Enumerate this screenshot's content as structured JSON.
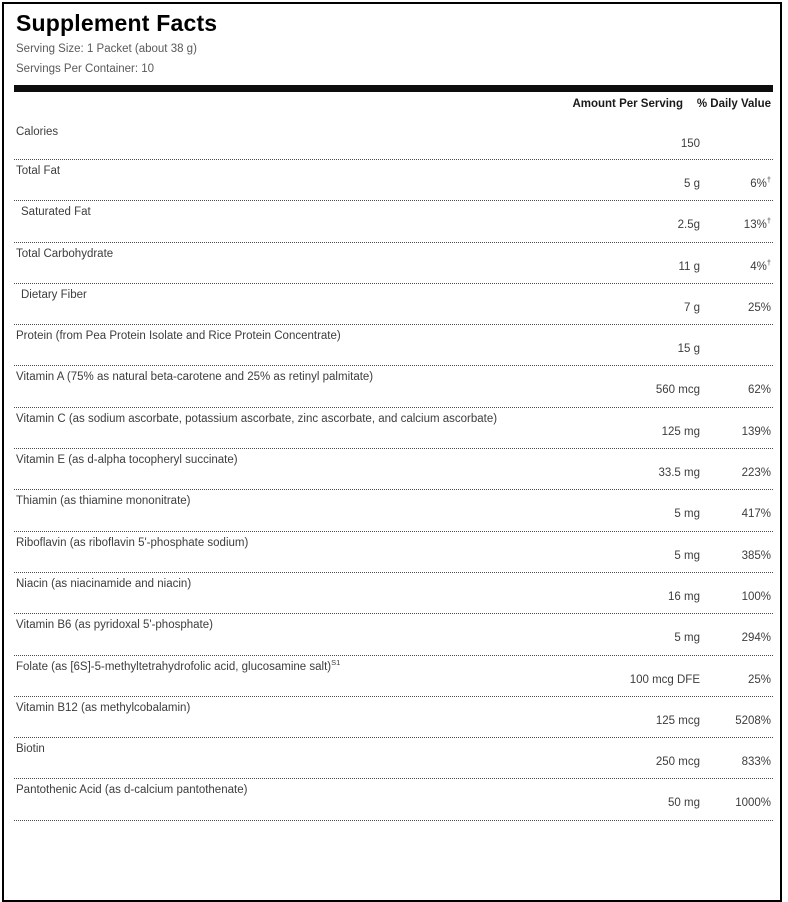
{
  "label": {
    "title": "Supplement Facts",
    "serving_size": "Serving Size: 1 Packet (about 38 g)",
    "servings_per_container": "Servings Per Container: 10",
    "columns": {
      "amount": "Amount Per Serving",
      "dv": "% Daily Value"
    },
    "rows": [
      {
        "name": "Calories",
        "amount": "150",
        "dv": ""
      },
      {
        "name": "Total Fat",
        "amount": "5 g",
        "dv": "6%",
        "dv_sup": "†"
      },
      {
        "name": "Saturated Fat",
        "amount": "2.5g",
        "dv": "13%",
        "dv_sup": "†"
      },
      {
        "name": "Total Carbohydrate",
        "amount": "11 g",
        "dv": "4%",
        "dv_sup": "†"
      },
      {
        "name": "Dietary Fiber",
        "amount": "7 g",
        "dv": "25%"
      },
      {
        "name": "Protein (from Pea Protein Isolate and Rice Protein Concentrate)",
        "amount": "15 g",
        "dv": ""
      },
      {
        "name": "Vitamin A (75% as natural beta-carotene and 25% as retinyl palmitate)",
        "amount": "560 mcg",
        "dv": "62%"
      },
      {
        "name": "Vitamin C (as sodium ascorbate, potassium ascorbate, zinc ascorbate, and calcium ascorbate)",
        "amount": "125 mg",
        "dv": "139%"
      },
      {
        "name": "Vitamin E (as d-alpha tocopheryl succinate)",
        "amount": "33.5 mg",
        "dv": "223%"
      },
      {
        "name": "Thiamin (as thiamine mononitrate)",
        "amount": "5 mg",
        "dv": "417%"
      },
      {
        "name": "Riboflavin (as riboflavin 5'-phosphate sodium)",
        "amount": "5 mg",
        "dv": "385%"
      },
      {
        "name": "Niacin (as niacinamide and niacin)",
        "amount": "16 mg",
        "dv": "100%"
      },
      {
        "name": "Vitamin B6 (as pyridoxal 5'-phosphate)",
        "amount": "5 mg",
        "dv": "294%"
      },
      {
        "name": "Folate (as [6S]-5-methyltetrahydrofolic acid, glucosamine salt)",
        "name_sup": "S1",
        "amount": "100 mcg DFE",
        "dv": "25%"
      },
      {
        "name": "Vitamin B12 (as methylcobalamin)",
        "amount": "125 mcg",
        "dv": "5208%"
      },
      {
        "name": "Biotin",
        "amount": "250 mcg",
        "dv": "833%"
      },
      {
        "name": "Pantothenic Acid (as d-calcium pantothenate)",
        "amount": "50 mg",
        "dv": "1000%"
      }
    ]
  }
}
